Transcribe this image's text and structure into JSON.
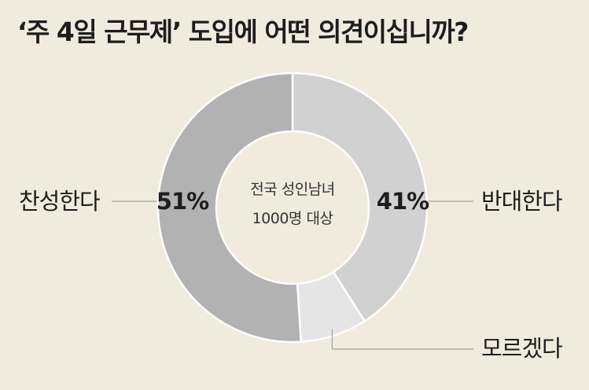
{
  "title": "‘주 4일 근무제’ 도입에 어떤 의견이십니까?",
  "center_text": [
    "전국 성인남녀",
    "1000명 대상"
  ],
  "chart_data": {
    "type": "pie",
    "donut": true,
    "title": "‘주 4일 근무제’ 도입에 어떤 의견이십니까?",
    "unit": "%",
    "slices": [
      {
        "label": "찬성한다",
        "value": 51,
        "display": "51%",
        "color": "#b2b2b2"
      },
      {
        "label": "반대한다",
        "value": 41,
        "display": "41%",
        "color": "#d1d1d1"
      },
      {
        "label": "모르겠다",
        "value": 8,
        "display": "",
        "color": "#e5e5e5"
      }
    ]
  },
  "colors": {
    "background": "#f1ebdd",
    "divider": "#ffffff",
    "leader_line": "#a0a0a0"
  }
}
